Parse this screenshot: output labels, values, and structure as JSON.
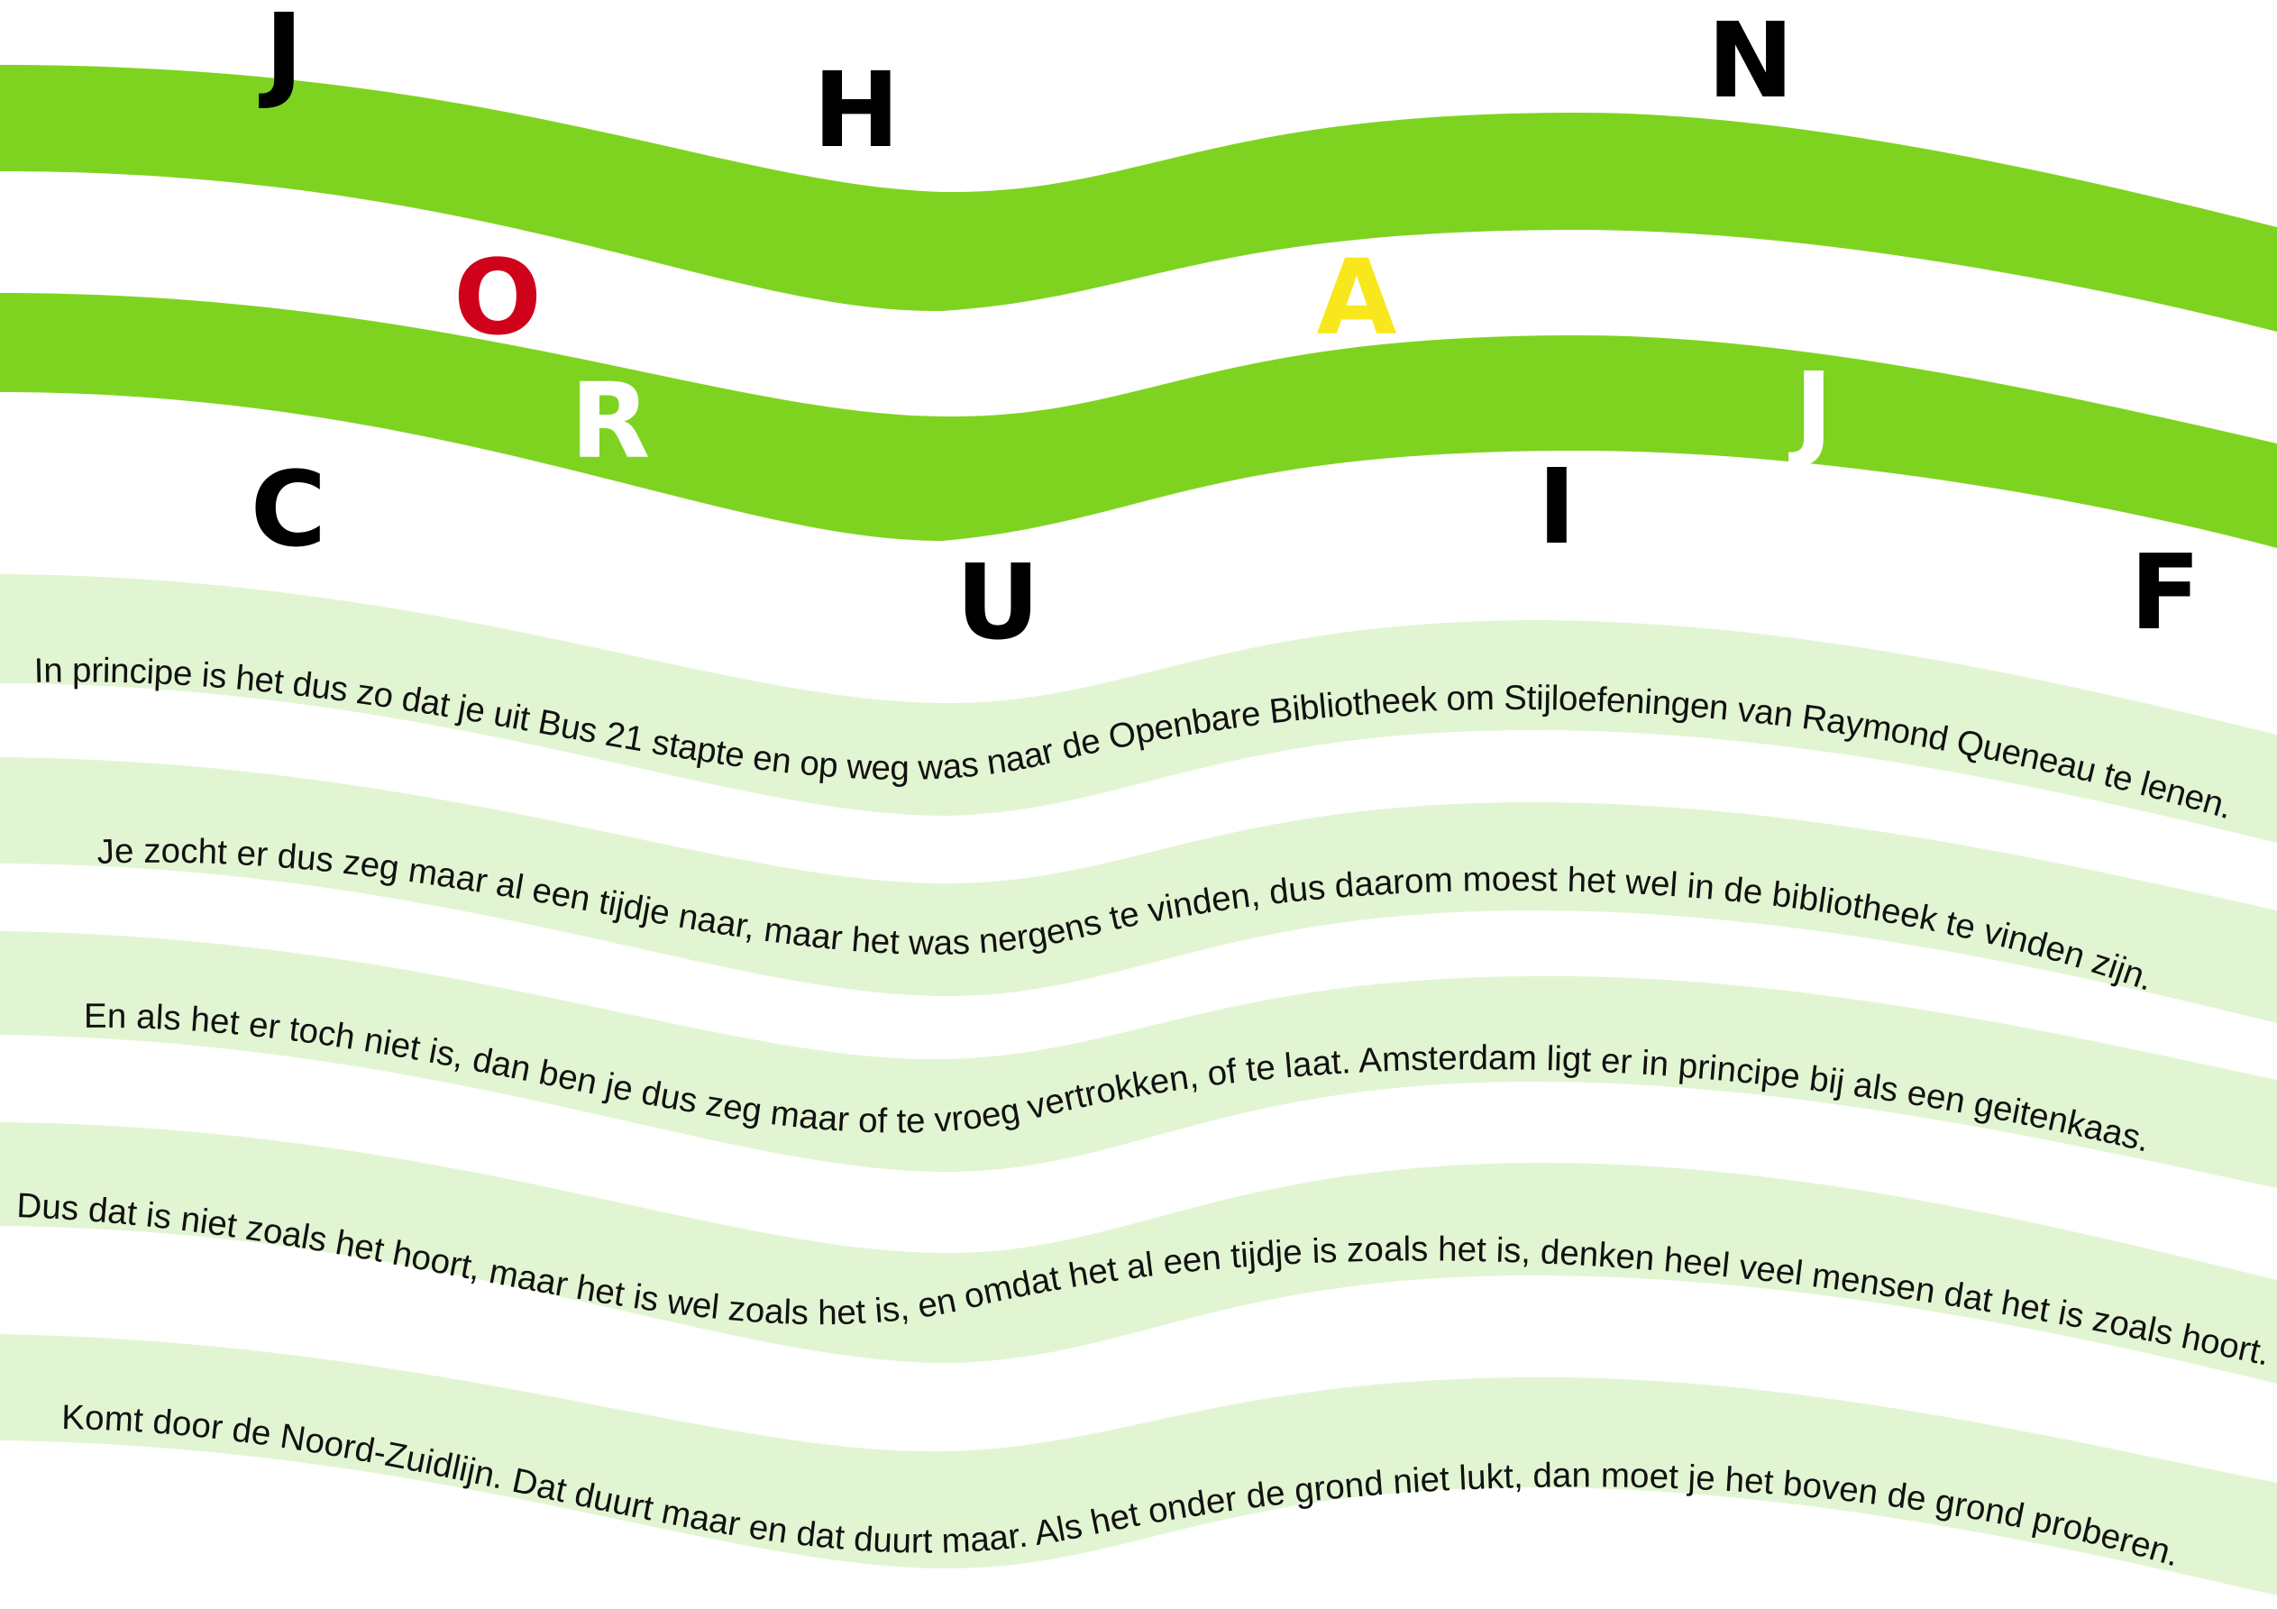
{
  "colors": {
    "background": "#ffffff",
    "band_dark": "#7ed321",
    "band_light": "#e2f5d2",
    "letter_default": "#000000",
    "letter_red": "#d0021b",
    "letter_yellow": "#f8e71c",
    "letter_white": "#ffffff",
    "text": "#111111"
  },
  "letters": [
    {
      "char": "J",
      "color": "#000000"
    },
    {
      "char": "H",
      "color": "#000000"
    },
    {
      "char": "N",
      "color": "#000000"
    },
    {
      "char": "O",
      "color": "#d0021b"
    },
    {
      "char": "A",
      "color": "#f8e71c"
    },
    {
      "char": "R",
      "color": "#ffffff"
    },
    {
      "char": "J",
      "color": "#ffffff"
    },
    {
      "char": "C",
      "color": "#000000"
    },
    {
      "char": "I",
      "color": "#000000"
    },
    {
      "char": "U",
      "color": "#000000"
    },
    {
      "char": "F",
      "color": "#000000"
    }
  ],
  "lines": [
    "In principe is het dus zo dat je uit Bus 21 stapte en op weg was naar de Openbare Bibliotheek om Stijloefeningen van Raymond Queneau te lenen.",
    "Je zocht er dus zeg maar al een tijdje naar, maar het was nergens te vinden, dus daarom moest het wel in de bibliotheek te vinden zijn.",
    "En als het er toch niet is, dan ben je dus zeg maar of te vroeg vertrokken, of te laat. Amsterdam ligt er in principe bij als een geitenkaas.",
    "Dus dat is niet zoals het hoort, maar het is wel zoals het is, en omdat het al een tijdje is zoals het is, denken heel veel mensen dat het is zoals hoort.",
    "Komt door de Noord-Zuidlijn. Dat duurt maar en dat duurt maar. Als het onder de grond niet lukt, dan moet je het boven de grond proberen."
  ]
}
